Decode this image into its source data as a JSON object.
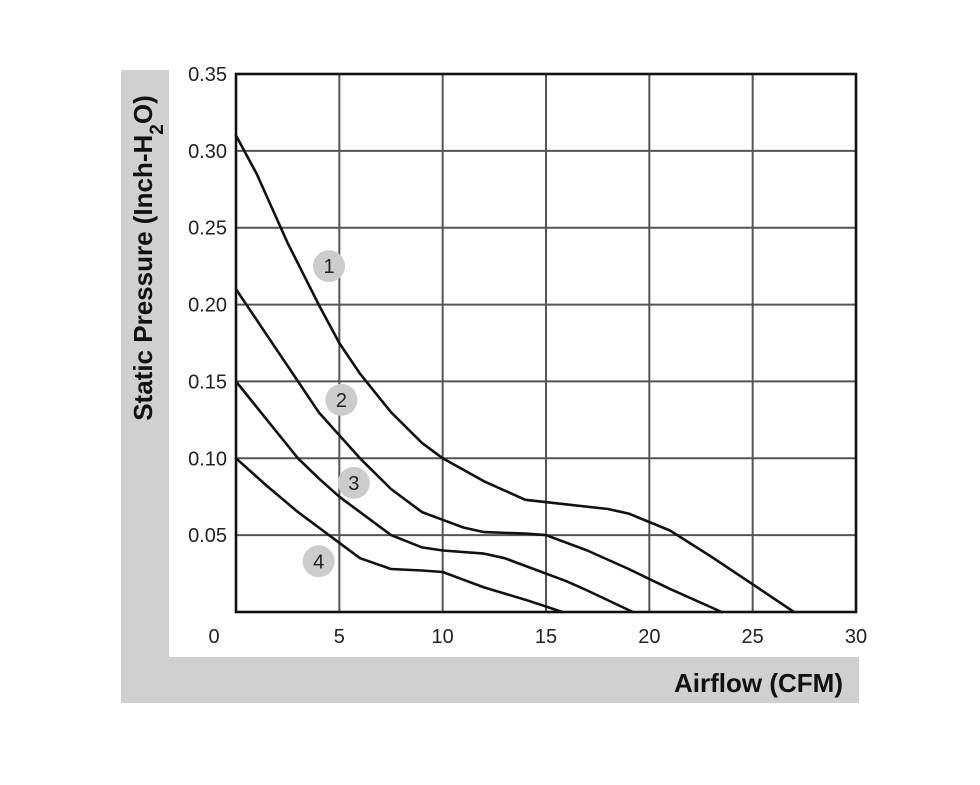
{
  "chart_data": {
    "type": "line",
    "xlabel": "Airflow (CFM)",
    "ylabel_parts": {
      "main": "Static Pressure (Inch-H",
      "sub": "2",
      "end": "O)"
    },
    "xlim": [
      0,
      30
    ],
    "ylim": [
      0,
      0.35
    ],
    "x_ticks": [
      "0",
      "5",
      "10",
      "15",
      "20",
      "25",
      "30"
    ],
    "y_ticks": [
      "0.05",
      "0.10",
      "0.15",
      "0.20",
      "0.25",
      "0.30",
      "0.35"
    ],
    "grid": true,
    "series": [
      {
        "name": "1",
        "x": [
          0,
          1,
          2.5,
          4,
          5,
          6,
          7.5,
          9,
          10,
          12,
          14,
          16,
          18,
          19,
          21,
          23,
          25,
          27
        ],
        "y": [
          0.31,
          0.285,
          0.24,
          0.2,
          0.175,
          0.155,
          0.13,
          0.11,
          0.1,
          0.085,
          0.073,
          0.07,
          0.067,
          0.064,
          0.053,
          0.036,
          0.018,
          0.0
        ]
      },
      {
        "name": "2",
        "x": [
          0,
          1.5,
          3,
          4,
          5,
          6,
          7.5,
          9,
          10,
          11,
          12,
          14,
          15,
          16,
          17,
          19,
          21,
          23.5
        ],
        "y": [
          0.21,
          0.18,
          0.15,
          0.13,
          0.115,
          0.1,
          0.08,
          0.065,
          0.06,
          0.055,
          0.052,
          0.051,
          0.05,
          0.045,
          0.04,
          0.028,
          0.015,
          0.0
        ]
      },
      {
        "name": "3",
        "x": [
          0,
          1.5,
          3,
          4,
          5,
          6,
          7.5,
          9,
          10,
          12,
          13,
          14,
          16,
          17,
          19.2
        ],
        "y": [
          0.15,
          0.125,
          0.1,
          0.087,
          0.075,
          0.065,
          0.05,
          0.042,
          0.04,
          0.038,
          0.035,
          0.03,
          0.02,
          0.014,
          0.0
        ]
      },
      {
        "name": "4",
        "x": [
          0,
          1.5,
          3,
          4,
          5,
          6,
          7.5,
          9,
          10,
          11,
          12,
          14,
          15.8
        ],
        "y": [
          0.1,
          0.082,
          0.065,
          0.055,
          0.045,
          0.035,
          0.028,
          0.027,
          0.026,
          0.021,
          0.016,
          0.008,
          0.0
        ]
      }
    ],
    "curve_labels": [
      {
        "text": "1",
        "x": 4.5,
        "y": 0.225
      },
      {
        "text": "2",
        "x": 5.1,
        "y": 0.138
      },
      {
        "text": "3",
        "x": 5.7,
        "y": 0.084
      },
      {
        "text": "4",
        "x": 4.0,
        "y": 0.033
      }
    ],
    "colors": {
      "band": "#d0d0d0",
      "line": "#111111",
      "grid": "#555555",
      "badge": "#cccccc"
    }
  }
}
